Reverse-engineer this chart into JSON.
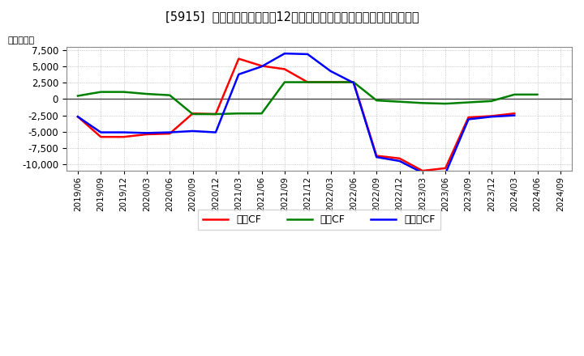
{
  "title": "[5915]  キャッシュフローの12か月移動合計の対前年同期増減額の推移",
  "ylabel": "（百万円）",
  "background_color": "#ffffff",
  "plot_bg_color": "#ffffff",
  "grid_color": "#aaaaaa",
  "ylim": [
    -11000,
    8000
  ],
  "yticks": [
    -10000,
    -7500,
    -5000,
    -2500,
    0,
    2500,
    5000,
    7500
  ],
  "legend_labels": [
    "営業CF",
    "投資CF",
    "フリーCF"
  ],
  "legend_colors": [
    "#ff0000",
    "#008000",
    "#0000ff"
  ],
  "x_labels": [
    "2019/06",
    "2019/09",
    "2019/12",
    "2020/03",
    "2020/06",
    "2020/09",
    "2020/12",
    "2021/03",
    "2021/06",
    "2021/09",
    "2021/12",
    "2022/03",
    "2022/06",
    "2022/09",
    "2022/12",
    "2023/03",
    "2023/06",
    "2023/09",
    "2023/12",
    "2024/03",
    "2024/06",
    "2024/09"
  ],
  "operating_cf": [
    -2700,
    -5800,
    -5800,
    -5400,
    -5300,
    -2200,
    -2300,
    6200,
    5100,
    4600,
    2600,
    2600,
    2600,
    -8700,
    -9100,
    -11000,
    -10600,
    -2800,
    -2600,
    -2200,
    null,
    null
  ],
  "investing_cf": [
    500,
    1100,
    1100,
    800,
    600,
    -2300,
    -2300,
    -2200,
    -2200,
    2600,
    2600,
    2600,
    2600,
    -200,
    -400,
    -600,
    -700,
    -500,
    -300,
    700,
    700,
    null
  ],
  "free_cf": [
    -2700,
    -5100,
    -5100,
    -5200,
    -5100,
    -4900,
    -5100,
    3800,
    5000,
    7000,
    6900,
    4300,
    2500,
    -8900,
    -9500,
    -11300,
    -11400,
    -3100,
    -2700,
    -2500,
    null,
    null
  ]
}
